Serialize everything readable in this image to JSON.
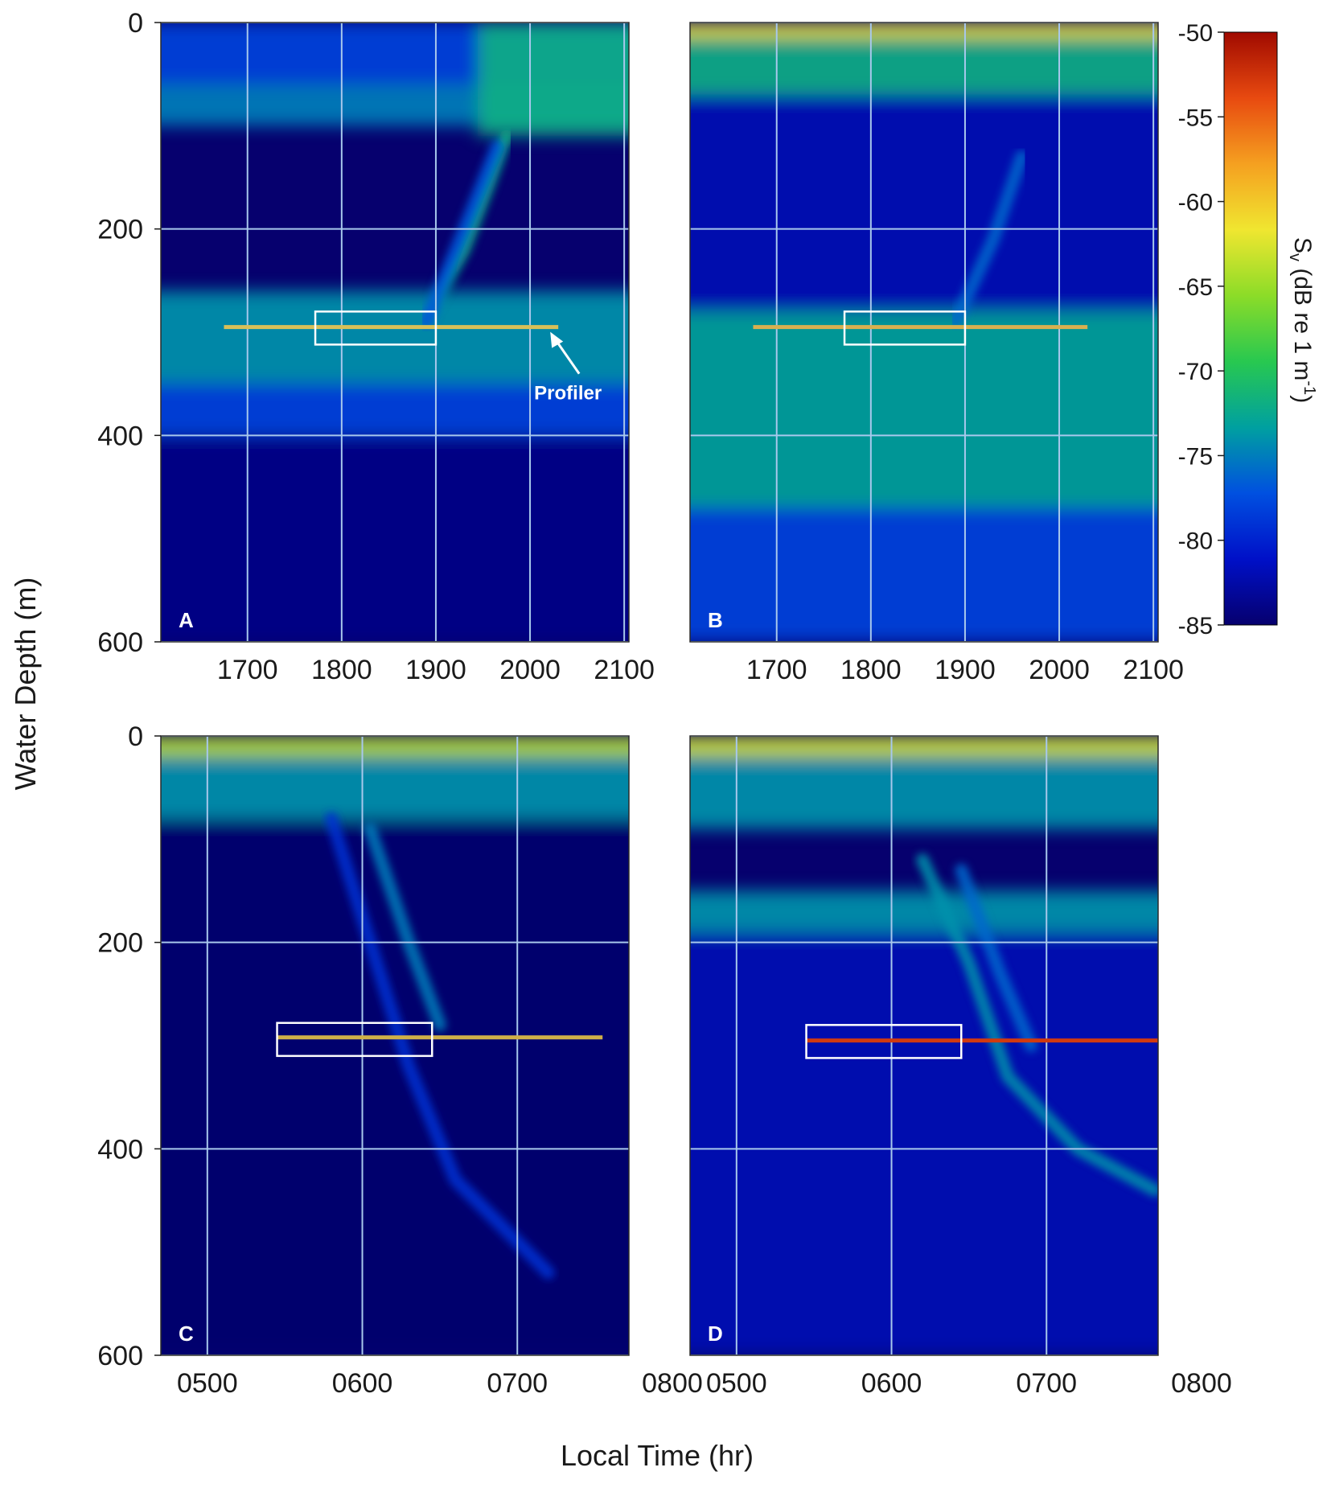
{
  "figure": {
    "ylabel": "Water Depth (m)",
    "xlabel": "Local Time (hr)",
    "colorbar": {
      "label_main": "S",
      "label_sub": "v",
      "label_rest": " (dB re 1 m",
      "label_sup": "-1",
      "label_end": ")",
      "ticks": [
        "-50",
        "-55",
        "-60",
        "-65",
        "-70",
        "-75",
        "-80",
        "-85"
      ],
      "min": -85,
      "max": -50,
      "colors": [
        "#06006e",
        "#0010c8",
        "#0050e0",
        "#00a0a0",
        "#28c850",
        "#8cdc28",
        "#f0e630",
        "#f5a020",
        "#e84a10",
        "#a00a00"
      ]
    },
    "annotation": "Profiler"
  },
  "chart_data": [
    {
      "type": "heatmap",
      "panel": "A",
      "x_ticks": [
        "1700",
        "1800",
        "1900",
        "2000",
        "2100"
      ],
      "x_tick_values": [
        17.0,
        18.0,
        19.0,
        20.0,
        21.0
      ],
      "xlim": [
        16.08,
        21.05
      ],
      "y_ticks": [
        "0",
        "200",
        "400",
        "600"
      ],
      "ylim": [
        0,
        600
      ],
      "profiler": {
        "x_start": 16.75,
        "x_end": 20.3,
        "depth": 295,
        "color": "#d8c058"
      },
      "box": {
        "x": [
          17.72,
          19.0
        ],
        "depth": [
          280,
          312
        ]
      },
      "bands": [
        {
          "x": [
            16.08,
            21.05
          ],
          "depth": [
            0,
            60
          ],
          "value": -78
        },
        {
          "x": [
            16.08,
            21.05
          ],
          "depth": [
            60,
            100
          ],
          "value": -75
        },
        {
          "x": [
            19.7,
            21.05
          ],
          "depth": [
            0,
            110
          ],
          "value": -72
        },
        {
          "x": [
            16.08,
            21.05
          ],
          "depth": [
            260,
            350
          ],
          "value": -74
        },
        {
          "x": [
            16.08,
            21.05
          ],
          "depth": [
            350,
            400
          ],
          "value": -78
        },
        {
          "x": [
            16.08,
            21.05
          ],
          "depth": [
            400,
            600
          ],
          "value": -84
        }
      ],
      "trails": [
        {
          "points": [
            [
              19.0,
              270
            ],
            [
              19.3,
              220
            ],
            [
              19.55,
              160
            ],
            [
              19.75,
              110
            ]
          ],
          "value": -72
        },
        {
          "points": [
            [
              18.9,
              290
            ],
            [
              19.3,
              200
            ],
            [
              19.65,
              120
            ]
          ],
          "value": -77
        }
      ]
    },
    {
      "type": "heatmap",
      "panel": "B",
      "x_ticks": [
        "1700",
        "1800",
        "1900",
        "2000",
        "2100"
      ],
      "x_tick_values": [
        17.0,
        18.0,
        19.0,
        20.0,
        21.0
      ],
      "xlim": [
        16.08,
        21.05
      ],
      "y_ticks": [
        "0",
        "200",
        "400",
        "600"
      ],
      "ylim": [
        0,
        600
      ],
      "profiler": {
        "x_start": 16.75,
        "x_end": 20.3,
        "depth": 295,
        "color": "#d8b050"
      },
      "box": {
        "x": [
          17.72,
          19.0
        ],
        "depth": [
          280,
          312
        ]
      },
      "bands": [
        {
          "x": [
            16.08,
            21.05
          ],
          "depth": [
            0,
            15
          ],
          "value": -62
        },
        {
          "x": [
            16.08,
            21.05
          ],
          "depth": [
            15,
            70
          ],
          "value": -72
        },
        {
          "x": [
            16.08,
            21.05
          ],
          "depth": [
            70,
            280
          ],
          "value": -82
        },
        {
          "x": [
            16.08,
            21.05
          ],
          "depth": [
            280,
            470
          ],
          "value": -73
        },
        {
          "x": [
            16.08,
            21.05
          ],
          "depth": [
            470,
            600
          ],
          "value": -78
        }
      ],
      "trails": [
        {
          "points": [
            [
              18.9,
              290
            ],
            [
              19.3,
              210
            ],
            [
              19.6,
              130
            ]
          ],
          "value": -76
        }
      ]
    },
    {
      "type": "heatmap",
      "panel": "C",
      "x_ticks": [
        "0500",
        "0600",
        "0700",
        "0800"
      ],
      "x_tick_values": [
        5.0,
        6.0,
        7.0,
        8.0
      ],
      "xlim": [
        4.7,
        7.72
      ],
      "y_ticks": [
        "0",
        "200",
        "400",
        "600"
      ],
      "ylim": [
        0,
        600
      ],
      "profiler": {
        "x_start": 5.45,
        "x_end": 7.55,
        "depth": 292,
        "color": "#d0b048"
      },
      "box": {
        "x": [
          5.45,
          6.45
        ],
        "depth": [
          278,
          310
        ]
      },
      "bands": [
        {
          "x": [
            4.7,
            7.72
          ],
          "depth": [
            0,
            20
          ],
          "value": -64
        },
        {
          "x": [
            4.7,
            7.72
          ],
          "depth": [
            20,
            80
          ],
          "value": -74
        },
        {
          "x": [
            4.7,
            7.72
          ],
          "depth": [
            80,
            600
          ],
          "value": -86
        }
      ],
      "trails": [
        {
          "points": [
            [
              5.8,
              80
            ],
            [
              6.05,
              200
            ],
            [
              6.3,
              320
            ],
            [
              6.6,
              430
            ],
            [
              7.2,
              520
            ]
          ],
          "value": -79
        },
        {
          "points": [
            [
              6.05,
              90
            ],
            [
              6.3,
              200
            ],
            [
              6.5,
              280
            ]
          ],
          "value": -75
        }
      ]
    },
    {
      "type": "heatmap",
      "panel": "D",
      "x_ticks": [
        "0500",
        "0600",
        "0700",
        "0800"
      ],
      "x_tick_values": [
        5.0,
        6.0,
        7.0,
        8.0
      ],
      "xlim": [
        4.7,
        7.72
      ],
      "y_ticks": [
        "0",
        "200",
        "400",
        "600"
      ],
      "ylim": [
        0,
        600
      ],
      "profiler": {
        "x_start": 5.45,
        "x_end": 7.8,
        "depth": 295,
        "color": "#d03a10"
      },
      "box": {
        "x": [
          5.45,
          6.45
        ],
        "depth": [
          280,
          312
        ]
      },
      "bands": [
        {
          "x": [
            4.7,
            7.72
          ],
          "depth": [
            0,
            20
          ],
          "value": -63
        },
        {
          "x": [
            4.7,
            7.72
          ],
          "depth": [
            20,
            90
          ],
          "value": -74
        },
        {
          "x": [
            4.7,
            7.72
          ],
          "depth": [
            150,
            190
          ],
          "value": -74
        },
        {
          "x": [
            4.7,
            7.72
          ],
          "depth": [
            190,
            600
          ],
          "value": -82
        }
      ],
      "trails": [
        {
          "points": [
            [
              6.2,
              120
            ],
            [
              6.5,
              220
            ],
            [
              6.75,
              330
            ],
            [
              7.2,
              400
            ],
            [
              7.7,
              440
            ]
          ],
          "value": -74
        },
        {
          "points": [
            [
              6.45,
              130
            ],
            [
              6.7,
              230
            ],
            [
              6.9,
              300
            ]
          ],
          "value": -76
        }
      ]
    }
  ]
}
